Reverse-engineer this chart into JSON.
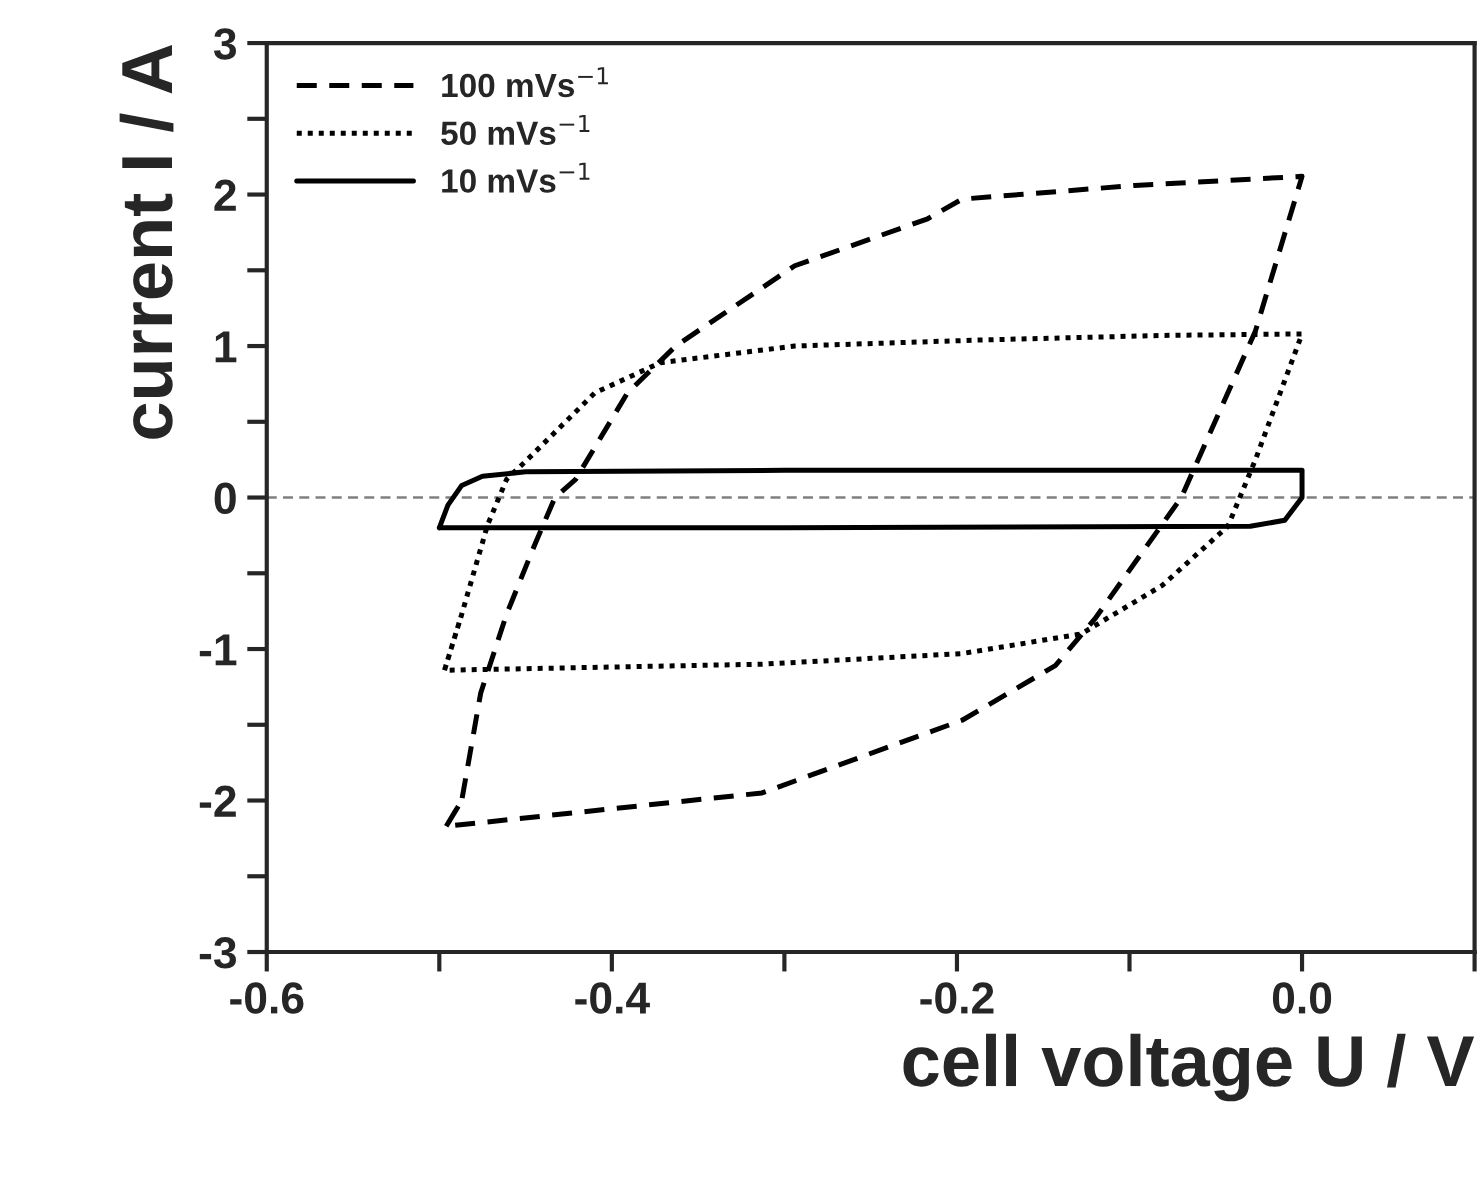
{
  "chart_data": {
    "type": "line",
    "xlabel": "cell voltage U / V",
    "ylabel": "current I / A",
    "xlim": [
      -0.6,
      0.1
    ],
    "xticks": [
      -0.6,
      {
        "value": -0.5,
        "label": null
      },
      -0.4,
      {
        "value": -0.3,
        "label": null
      },
      -0.2,
      {
        "value": -0.1,
        "label": null
      },
      {
        "value": 0,
        "label": "0.0"
      },
      {
        "value": 0.1,
        "label": null
      }
    ],
    "ylim": [
      -3,
      3
    ],
    "yticks": [
      -3,
      {
        "value": -2.5,
        "label": null
      },
      -2,
      {
        "value": -1.5,
        "label": null
      },
      -1,
      {
        "value": -0.5,
        "label": null
      },
      0,
      {
        "value": 0.5,
        "label": null
      },
      1,
      {
        "value": 1.5,
        "label": null
      },
      2,
      {
        "value": 2.5,
        "label": null
      },
      3
    ],
    "grid": false,
    "legend": "top left",
    "marker": "none",
    "ref_lines": [
      {
        "axis": "y",
        "value": 0,
        "color": "#808080",
        "line_style": "dashed"
      }
    ],
    "series": [
      {
        "name": "100 mVs$^{−1}$",
        "color": "#000000",
        "line_style": "dashed",
        "x": [
          -0.496,
          -0.487,
          -0.476,
          -0.461,
          -0.445,
          -0.433,
          -0.421,
          -0.391,
          -0.363,
          -0.294,
          -0.217,
          -0.197,
          -0.097,
          0.0,
          -0.027,
          -0.07,
          -0.12,
          -0.143,
          -0.197,
          -0.313,
          -0.496,
          -0.487
        ],
        "values": [
          -2.17,
          -2.0,
          -1.29,
          -0.77,
          -0.32,
          0.0,
          0.12,
          0.69,
          1.0,
          1.53,
          1.84,
          1.97,
          2.06,
          2.12,
          1.1,
          0.0,
          -0.8,
          -1.11,
          -1.47,
          -1.95,
          -2.17,
          -2.0
        ]
      },
      {
        "name": "50 mVs$^{−1}$",
        "color": "#000000",
        "line_style": "dotted",
        "x": [
          -0.497,
          -0.487,
          -0.472,
          -0.461,
          -0.449,
          -0.41,
          -0.372,
          -0.294,
          -0.186,
          -0.081,
          0.0,
          -0.014,
          -0.027,
          -0.043,
          -0.081,
          -0.128,
          -0.197,
          -0.313,
          -0.497,
          -0.487
        ],
        "values": [
          -1.14,
          -0.77,
          -0.18,
          0.12,
          0.25,
          0.69,
          0.89,
          1.0,
          1.04,
          1.07,
          1.08,
          0.65,
          0.25,
          -0.19,
          -0.58,
          -0.9,
          -1.03,
          -1.1,
          -1.14,
          -0.77
        ]
      },
      {
        "name": "10 mVs$^{−1}$",
        "color": "#000000",
        "line_style": "solid",
        "x": [
          -0.5,
          -0.495,
          -0.487,
          -0.475,
          -0.45,
          -0.3,
          0.0,
          0.0,
          -0.01,
          -0.03,
          -0.3,
          -0.5,
          -0.495
        ],
        "values": [
          -0.2,
          -0.05,
          0.08,
          0.14,
          0.17,
          0.18,
          0.18,
          0.0,
          -0.15,
          -0.19,
          -0.2,
          -0.2,
          -0.05
        ]
      }
    ]
  }
}
